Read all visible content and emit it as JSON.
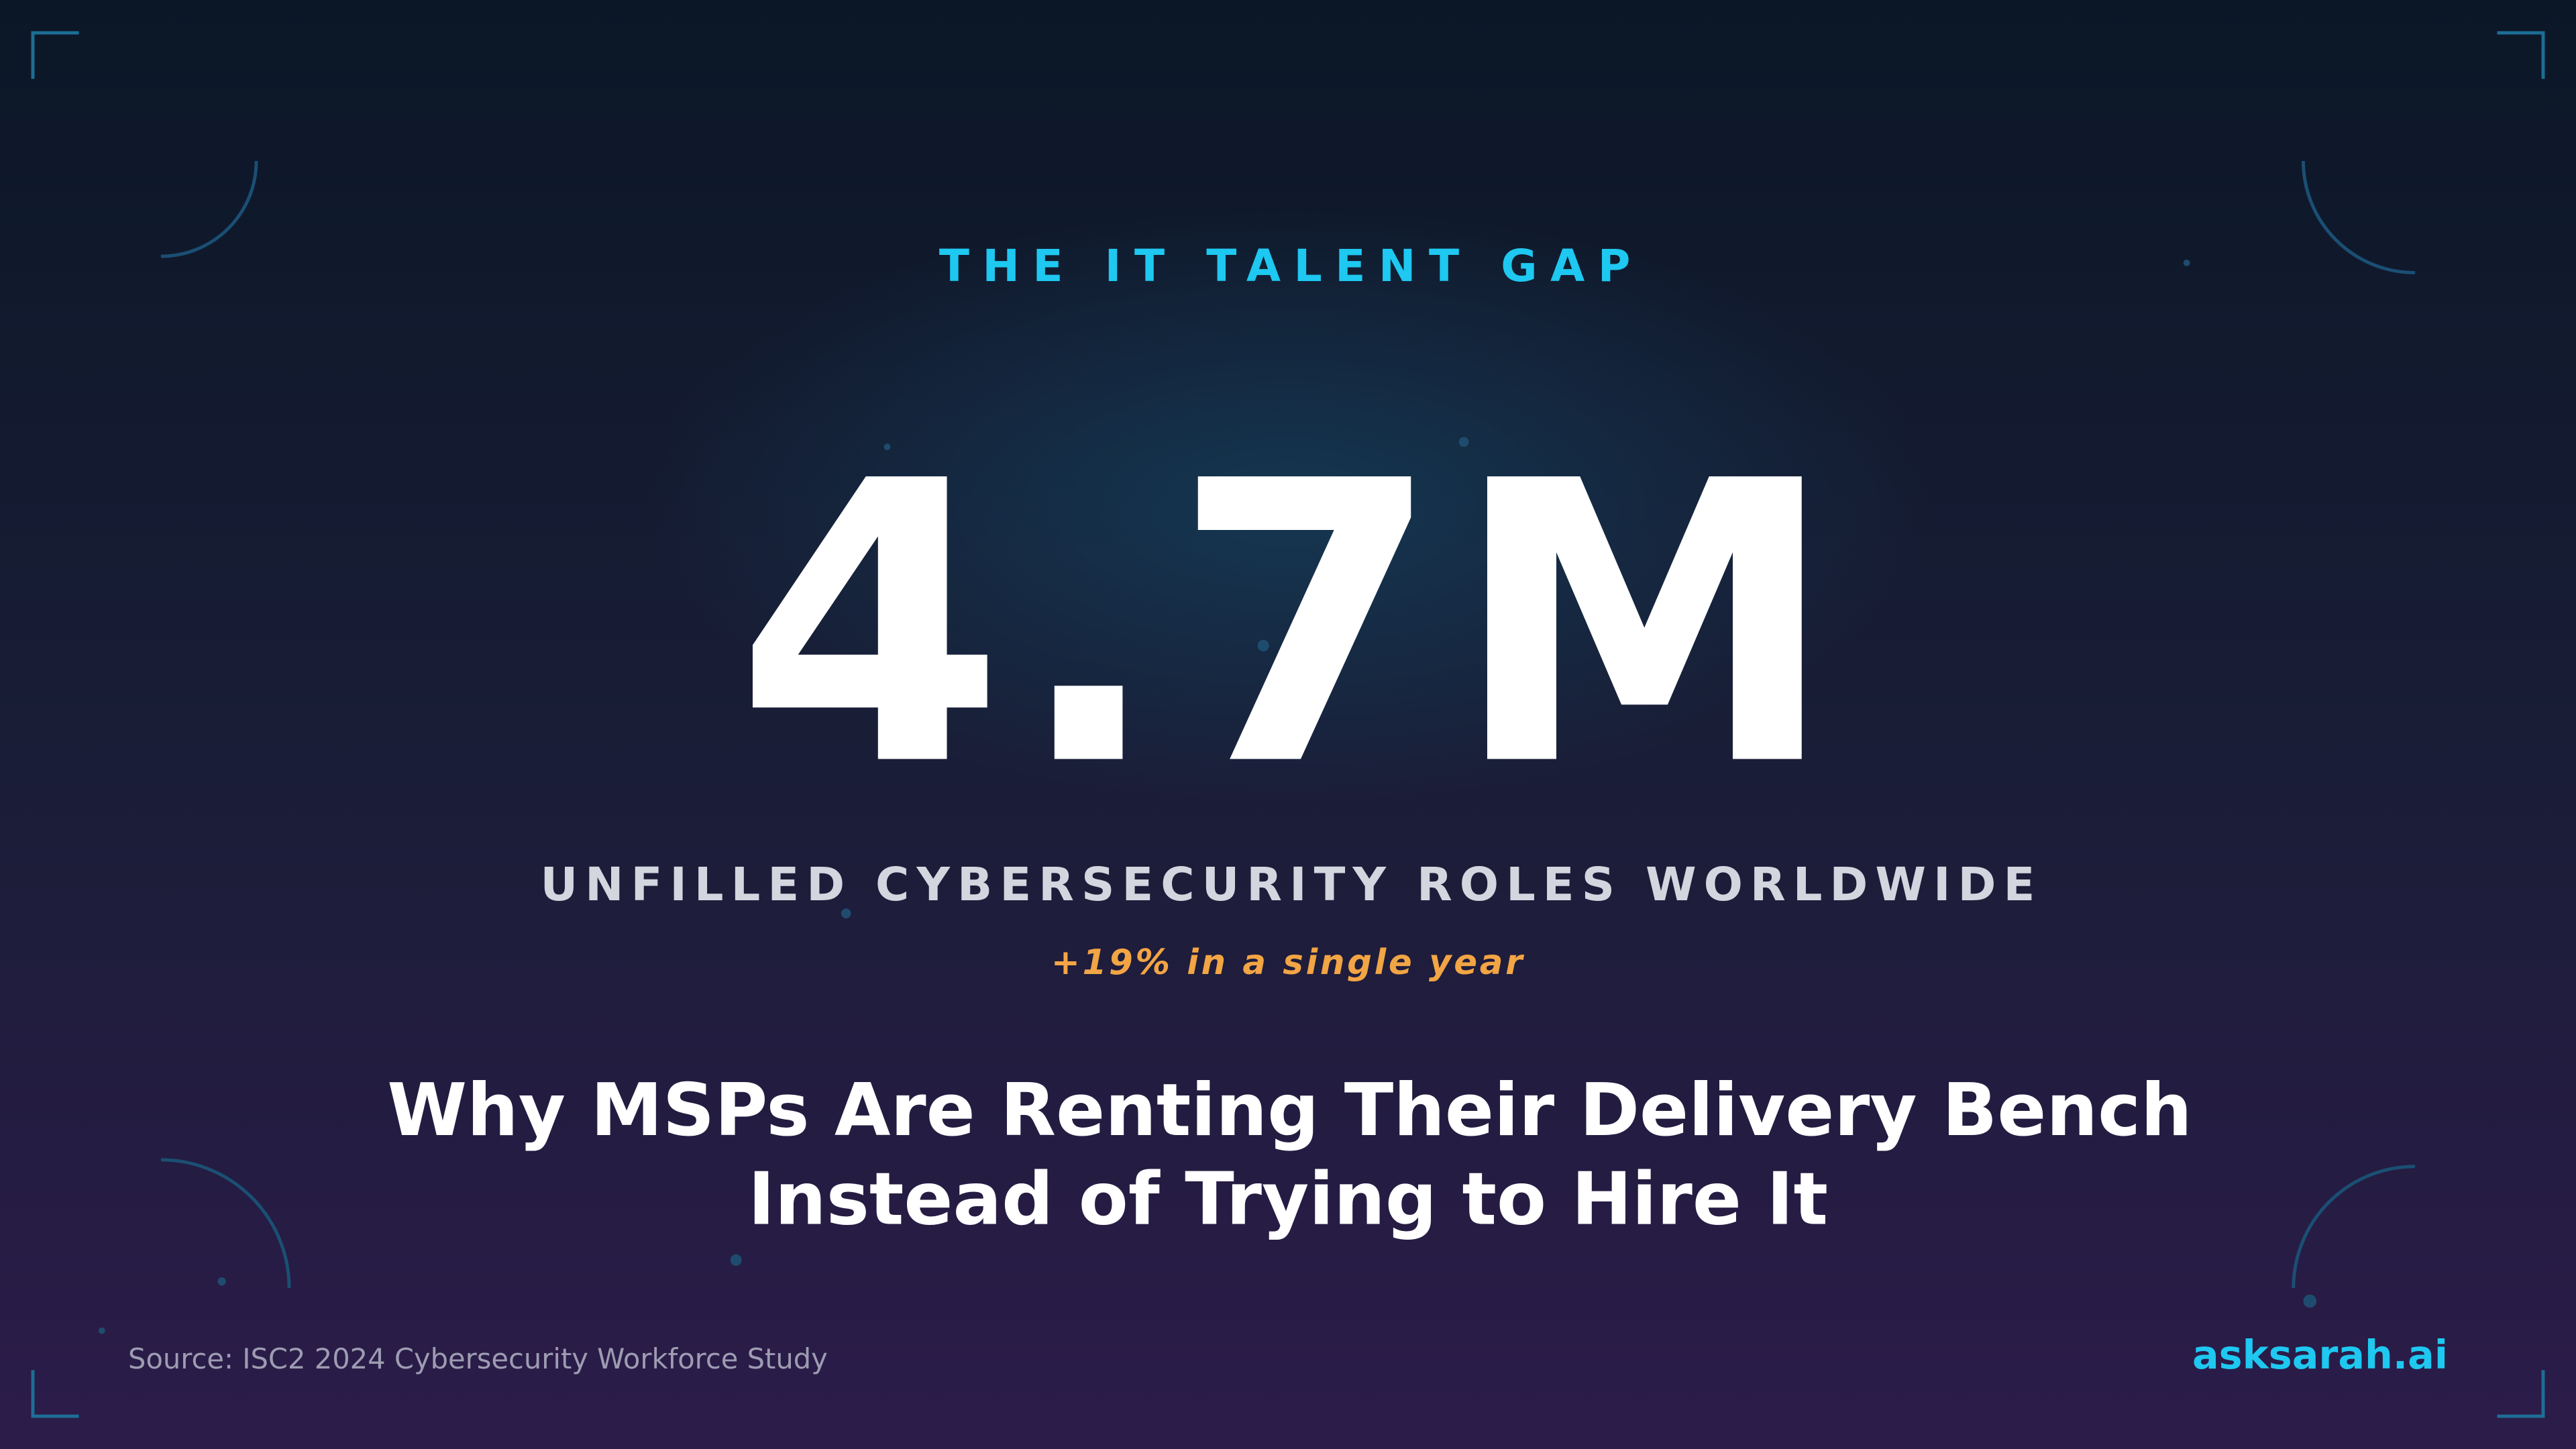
{
  "eyebrow": "THE IT TALENT GAP",
  "stat": "4.7M",
  "stat_label": "UNFILLED CYBERSECURITY ROLES WORLDWIDE",
  "change": "+19% in a single year",
  "headline": [
    "Why MSPs Are Renting Their Delivery Bench",
    "Instead of Trying to Hire It"
  ],
  "source": "Source: ISC2 2024 Cybersecurity Workforce Study",
  "brand": "asksarah.ai"
}
